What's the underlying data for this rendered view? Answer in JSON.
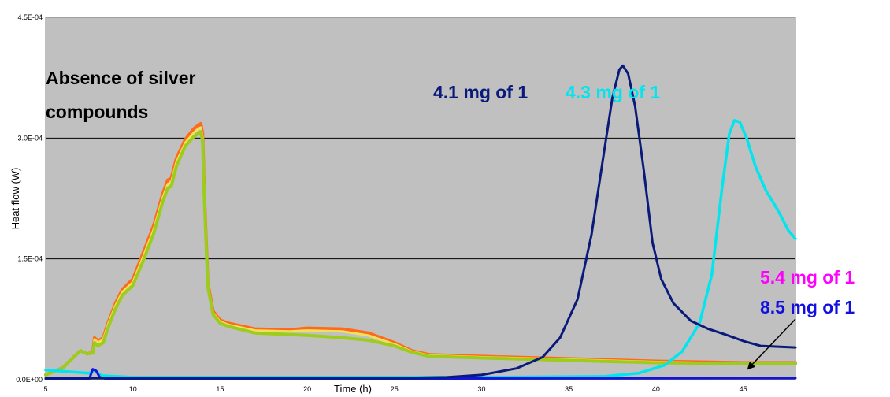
{
  "chart_data": {
    "type": "line",
    "xlabel": "Time (h)",
    "ylabel": "Heat flow (W)",
    "xlim": [
      5,
      48
    ],
    "ylim": [
      0,
      0.00045
    ],
    "x_ticks": [
      5,
      10,
      15,
      20,
      25,
      30,
      35,
      40,
      45
    ],
    "y_ticks": [
      {
        "value": 0,
        "label": "0.0E+00"
      },
      {
        "value": 0.00015,
        "label": "1.5E-04"
      },
      {
        "value": 0.0003,
        "label": "3.0E-04"
      },
      {
        "value": 0.00045,
        "label": "4.5E-04"
      }
    ],
    "grid": "horizontal",
    "background": "#c0c0c0",
    "annotations": [
      {
        "id": "absence-line1",
        "text": "Absence of silver",
        "color": "#000000"
      },
      {
        "id": "absence-line2",
        "text": "compounds",
        "color": "#000000"
      },
      {
        "id": "label-41",
        "text": "4.1 mg of 1",
        "color": "#0a1a7a"
      },
      {
        "id": "label-43",
        "text": "4.3 mg of 1",
        "color": "#00e5ee"
      },
      {
        "id": "label-54",
        "text": "5.4 mg of 1",
        "color": "#ff00ff"
      },
      {
        "id": "label-85",
        "text": "8.5 mg of 1",
        "color": "#1010e0"
      }
    ],
    "series": [
      {
        "color": "#ff6a1a",
        "width": 4,
        "points": [
          [
            5,
            6e-06
          ],
          [
            6,
            1.5e-05
          ],
          [
            6.6,
            2.8e-05
          ],
          [
            7,
            3.6e-05
          ],
          [
            7.4,
            3.2e-05
          ],
          [
            7.7,
            3.4e-05
          ],
          [
            7.8,
            5.2e-05
          ],
          [
            8,
            4.8e-05
          ],
          [
            8.3,
            5.2e-05
          ],
          [
            8.6,
            7.2e-05
          ],
          [
            9,
            9.5e-05
          ],
          [
            9.4,
            0.000112
          ],
          [
            10,
            0.000125
          ],
          [
            10.6,
            0.000158
          ],
          [
            11.2,
            0.000192
          ],
          [
            11.7,
            0.00023
          ],
          [
            12,
            0.000248
          ],
          [
            12.2,
            0.00025
          ],
          [
            12.5,
            0.000275
          ],
          [
            13,
            0.000298
          ],
          [
            13.5,
            0.000312
          ],
          [
            13.9,
            0.000318
          ],
          [
            14,
            0.000305
          ],
          [
            14.1,
            0.00023
          ],
          [
            14.3,
            0.00012
          ],
          [
            14.6,
            8.5e-05
          ],
          [
            15,
            7.4e-05
          ],
          [
            15.5,
            7e-05
          ],
          [
            17,
            6.3e-05
          ],
          [
            19,
            6.2e-05
          ],
          [
            20,
            6.4e-05
          ],
          [
            22,
            6.3e-05
          ],
          [
            23.5,
            5.8e-05
          ],
          [
            25,
            4.6e-05
          ],
          [
            26,
            3.6e-05
          ],
          [
            27,
            3.1e-05
          ],
          [
            30,
            2.9e-05
          ],
          [
            35,
            2.6e-05
          ],
          [
            40,
            2.3e-05
          ],
          [
            45,
            2.1e-05
          ],
          [
            48,
            2.1e-05
          ]
        ]
      },
      {
        "color": "#f0e060",
        "width": 3,
        "points": [
          [
            5,
            6e-06
          ],
          [
            6,
            1.5e-05
          ],
          [
            6.6,
            2.8e-05
          ],
          [
            7,
            3.6e-05
          ],
          [
            7.4,
            3.2e-05
          ],
          [
            7.7,
            3.4e-05
          ],
          [
            7.8,
            5e-05
          ],
          [
            8,
            4.6e-05
          ],
          [
            8.3,
            5e-05
          ],
          [
            8.6,
            7e-05
          ],
          [
            9,
            9.2e-05
          ],
          [
            9.4,
            0.000109
          ],
          [
            10,
            0.000121
          ],
          [
            10.6,
            0.000153
          ],
          [
            11.2,
            0.000187
          ],
          [
            11.7,
            0.000225
          ],
          [
            12,
            0.000243
          ],
          [
            12.2,
            0.000245
          ],
          [
            12.5,
            0.00027
          ],
          [
            13,
            0.000294
          ],
          [
            13.5,
            0.000307
          ],
          [
            13.9,
            0.000313
          ],
          [
            14,
            0.0003
          ],
          [
            14.1,
            0.000226
          ],
          [
            14.3,
            0.000118
          ],
          [
            14.6,
            8.3e-05
          ],
          [
            15,
            7.2e-05
          ],
          [
            15.5,
            6.8e-05
          ],
          [
            17,
            6.1e-05
          ],
          [
            19,
            6e-05
          ],
          [
            20,
            6.1e-05
          ],
          [
            22,
            6e-05
          ],
          [
            23.5,
            5.5e-05
          ],
          [
            25,
            4.4e-05
          ],
          [
            26,
            3.5e-05
          ],
          [
            27,
            3e-05
          ],
          [
            30,
            2.8e-05
          ],
          [
            35,
            2.5e-05
          ],
          [
            40,
            2.2e-05
          ],
          [
            45,
            2e-05
          ],
          [
            48,
            2e-05
          ]
        ]
      },
      {
        "color": "#9ccc1c",
        "width": 4,
        "points": [
          [
            5,
            6e-06
          ],
          [
            6,
            1.5e-05
          ],
          [
            6.6,
            2.8e-05
          ],
          [
            7,
            3.6e-05
          ],
          [
            7.4,
            3.2e-05
          ],
          [
            7.7,
            3.3e-05
          ],
          [
            7.8,
            4.6e-05
          ],
          [
            8,
            4.2e-05
          ],
          [
            8.3,
            4.6e-05
          ],
          [
            8.6,
            6.6e-05
          ],
          [
            9,
            8.8e-05
          ],
          [
            9.4,
            0.000105
          ],
          [
            10,
            0.000117
          ],
          [
            10.6,
            0.000148
          ],
          [
            11.2,
            0.000182
          ],
          [
            11.7,
            0.00022
          ],
          [
            12,
            0.000238
          ],
          [
            12.2,
            0.00024
          ],
          [
            12.5,
            0.000265
          ],
          [
            13,
            0.00029
          ],
          [
            13.5,
            0.000302
          ],
          [
            13.9,
            0.000308
          ],
          [
            14,
            0.000295
          ],
          [
            14.1,
            0.000222
          ],
          [
            14.3,
            0.000115
          ],
          [
            14.6,
            8.1e-05
          ],
          [
            15,
            7e-05
          ],
          [
            15.5,
            6.6e-05
          ],
          [
            17,
            5.8e-05
          ],
          [
            19,
            5.6e-05
          ],
          [
            20,
            5.5e-05
          ],
          [
            22,
            5.2e-05
          ],
          [
            23.5,
            4.9e-05
          ],
          [
            25,
            4.2e-05
          ],
          [
            26,
            3.4e-05
          ],
          [
            27,
            2.9e-05
          ],
          [
            30,
            2.7e-05
          ],
          [
            35,
            2.4e-05
          ],
          [
            40,
            2.1e-05
          ],
          [
            45,
            2e-05
          ],
          [
            48,
            2e-05
          ]
        ]
      },
      {
        "color": "#00e5ee",
        "width": 3.5,
        "points": [
          [
            5,
            1.2e-05
          ],
          [
            7.5,
            8e-06
          ],
          [
            7.8,
            1.2e-05
          ],
          [
            8.2,
            5e-06
          ],
          [
            10,
            3e-06
          ],
          [
            20,
            3e-06
          ],
          [
            30,
            3e-06
          ],
          [
            37,
            4e-06
          ],
          [
            39,
            8e-06
          ],
          [
            40.5,
            1.8e-05
          ],
          [
            41.5,
            3.5e-05
          ],
          [
            42.5,
            7e-05
          ],
          [
            43.2,
            0.00013
          ],
          [
            43.8,
            0.00024
          ],
          [
            44.2,
            0.000305
          ],
          [
            44.5,
            0.000322
          ],
          [
            44.8,
            0.00032
          ],
          [
            45.2,
            0.0003
          ],
          [
            45.7,
            0.000265
          ],
          [
            46.3,
            0.000235
          ],
          [
            47,
            0.00021
          ],
          [
            47.6,
            0.000185
          ],
          [
            48,
            0.000175
          ]
        ]
      },
      {
        "color": "#1414d8",
        "width": 3,
        "points": [
          [
            5,
            1e-06
          ],
          [
            7.5,
            1e-06
          ],
          [
            7.7,
            1.3e-05
          ],
          [
            7.9,
            1.1e-05
          ],
          [
            8.1,
            3e-06
          ],
          [
            8.5,
            1e-06
          ],
          [
            48,
            2e-06
          ]
        ]
      },
      {
        "color": "#0a1a7a",
        "width": 3,
        "points": [
          [
            5,
            2e-06
          ],
          [
            20,
            2e-06
          ],
          [
            25,
            2e-06
          ],
          [
            28,
            3e-06
          ],
          [
            30,
            6e-06
          ],
          [
            32,
            1.4e-05
          ],
          [
            33.5,
            2.8e-05
          ],
          [
            34.5,
            5.2e-05
          ],
          [
            35.5,
            0.0001
          ],
          [
            36.3,
            0.00018
          ],
          [
            37,
            0.00028
          ],
          [
            37.5,
            0.00035
          ],
          [
            37.9,
            0.000385
          ],
          [
            38.1,
            0.00039
          ],
          [
            38.4,
            0.00038
          ],
          [
            38.8,
            0.00034
          ],
          [
            39.3,
            0.00026
          ],
          [
            39.8,
            0.00017
          ],
          [
            40.3,
            0.000125
          ],
          [
            41,
            9.5e-05
          ],
          [
            42,
            7.3e-05
          ],
          [
            43,
            6.3e-05
          ],
          [
            44,
            5.6e-05
          ],
          [
            45,
            4.8e-05
          ],
          [
            46,
            4.2e-05
          ],
          [
            47,
            4.1e-05
          ],
          [
            48,
            4e-05
          ]
        ]
      }
    ]
  }
}
